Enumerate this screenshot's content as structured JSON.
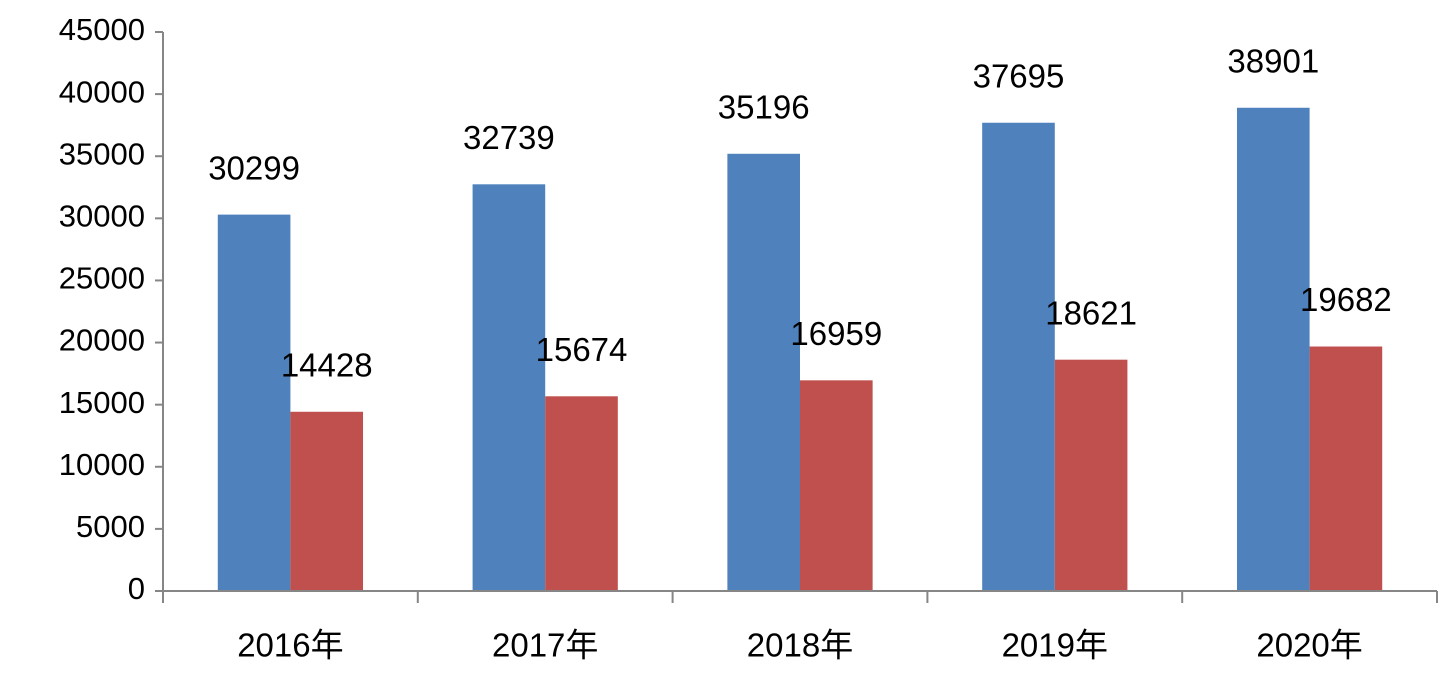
{
  "chart_data": {
    "type": "bar",
    "categories": [
      "2016年",
      "2017年",
      "2018年",
      "2019年",
      "2020年"
    ],
    "series": [
      {
        "color": "#4f81bd",
        "values": [
          30299,
          32739,
          35196,
          37695,
          38901
        ]
      },
      {
        "color": "#c0504d",
        "values": [
          14428,
          15674,
          16959,
          18621,
          19682
        ]
      }
    ],
    "ylim": [
      0,
      45000
    ],
    "yticks": [
      0,
      5000,
      10000,
      15000,
      20000,
      25000,
      30000,
      35000,
      40000,
      45000
    ],
    "grid": false
  }
}
